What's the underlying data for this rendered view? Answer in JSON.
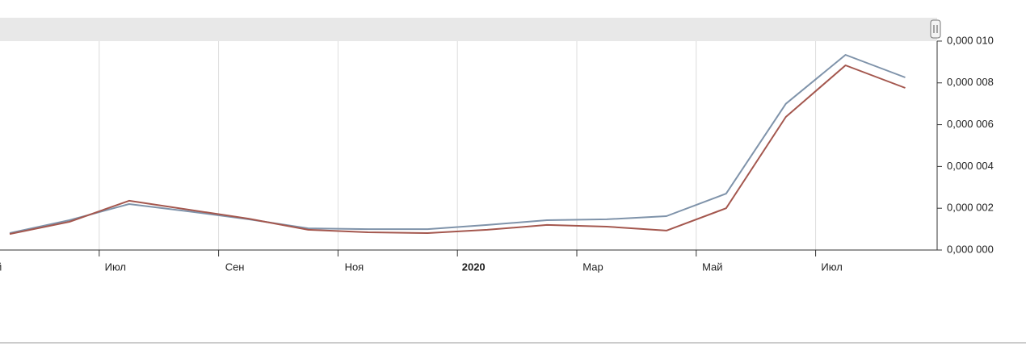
{
  "chart_data": {
    "type": "line",
    "categories": [
      "ай",
      null,
      "Июл",
      null,
      "Сен",
      null,
      "Ноя",
      null,
      "2020",
      null,
      "Мар",
      null,
      "Май",
      null,
      "Июл",
      null
    ],
    "series": [
      {
        "color": "#7f93aa",
        "values": [
          8.1e-07,
          1.43e-06,
          2.2e-06,
          1.85e-06,
          1.47e-06,
          1.04e-06,
          1e-06,
          1e-06,
          1.2e-06,
          1.43e-06,
          1.47e-06,
          1.62e-06,
          2.7e-06,
          7e-06,
          9.34e-06,
          8.26e-06
        ]
      },
      {
        "color": "#a4574e",
        "values": [
          7.7e-07,
          1.35e-06,
          2.36e-06,
          1.93e-06,
          1.5e-06,
          9.7e-07,
          8.5e-07,
          8.1e-07,
          9.7e-07,
          1.2e-06,
          1.12e-06,
          9.3e-07,
          2e-06,
          6.37e-06,
          8.84e-06,
          7.76e-06
        ]
      }
    ],
    "ylim": [
      0,
      1.05e-05
    ],
    "yticks": [
      {
        "value": 0,
        "label": "0,000 000"
      },
      {
        "value": 2e-06,
        "label": "0,000 002"
      },
      {
        "value": 4e-06,
        "label": "0,000 004"
      },
      {
        "value": 6e-06,
        "label": "0,000 006"
      },
      {
        "value": 8e-06,
        "label": "0,000 008"
      },
      {
        "value": 1e-05,
        "label": "0,000 010"
      }
    ],
    "grid": true
  }
}
